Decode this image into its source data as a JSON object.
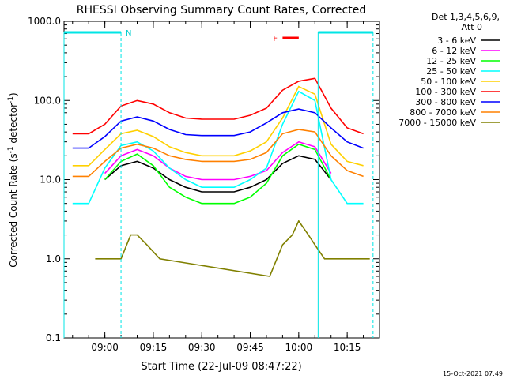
{
  "chart_data": {
    "type": "line",
    "title": "RHESSI Observing Summary Count Rates, Corrected",
    "xlabel": "Start Time (22-Jul-09 08:47:22)",
    "ylabel_main": "Corrected Count Rate (s",
    "ylabel_sup1": "-1",
    "ylabel_mid": " detector",
    "ylabel_sup2": "-1",
    "ylabel_end": ")",
    "y_scale": "log",
    "ylim": [
      0.1,
      1000
    ],
    "xlim": [
      "08:47:22",
      "10:25:00"
    ],
    "x_ticks": [
      "09:00",
      "09:15",
      "09:30",
      "09:45",
      "10:00",
      "10:15"
    ],
    "y_ticks": [
      "0.1",
      "1.0",
      "10.0",
      "100.0",
      "1000.0"
    ],
    "footer_date": "15-Oct-2021 07:49",
    "legend_header": [
      "Det 1,3,4,5,6,9,",
      "Att 0"
    ],
    "annotations": {
      "night_flag": "N",
      "flare_flag": "F",
      "night_intervals": [
        [
          "08:47:22",
          "09:05:00"
        ],
        [
          "10:06:00",
          "10:23:00"
        ]
      ],
      "flare_interval": [
        "09:55:00",
        "10:00:00"
      ]
    },
    "series": [
      {
        "name": "3 - 6 keV",
        "color": "#000000",
        "x": [
          "08:50",
          "08:55",
          "09:00",
          "09:05",
          "09:10",
          "09:15",
          "09:20",
          "09:25",
          "09:30",
          "09:35",
          "09:40",
          "09:45",
          "09:50",
          "09:55",
          "10:00",
          "10:05",
          "10:10",
          "10:15",
          "10:20"
        ],
        "y": [
          null,
          null,
          10,
          15,
          17,
          14,
          10,
          8,
          7,
          7,
          7,
          8,
          10,
          16,
          20,
          18,
          10,
          null,
          null
        ]
      },
      {
        "name": "6 - 12 keV",
        "color": "#ff00ff",
        "x": [
          "08:50",
          "08:55",
          "09:00",
          "09:05",
          "09:10",
          "09:15",
          "09:20",
          "09:25",
          "09:30",
          "09:35",
          "09:40",
          "09:45",
          "09:50",
          "09:55",
          "10:00",
          "10:05",
          "10:10",
          "10:15",
          "10:20"
        ],
        "y": [
          null,
          null,
          12,
          20,
          24,
          20,
          14,
          11,
          10,
          10,
          10,
          11,
          13,
          22,
          30,
          26,
          12,
          null,
          null
        ]
      },
      {
        "name": "12 - 25 keV",
        "color": "#00ff00",
        "x": [
          "08:50",
          "08:55",
          "09:00",
          "09:05",
          "09:10",
          "09:15",
          "09:20",
          "09:25",
          "09:30",
          "09:35",
          "09:40",
          "09:45",
          "09:50",
          "09:55",
          "10:00",
          "10:05",
          "10:10",
          "10:15",
          "10:20"
        ],
        "y": [
          null,
          null,
          10,
          17,
          21,
          15,
          8,
          6,
          5,
          5,
          5,
          6,
          9,
          20,
          28,
          24,
          10,
          null,
          null
        ]
      },
      {
        "name": "25 - 50 keV",
        "color": "#00ffff",
        "x": [
          "08:50",
          "08:55",
          "09:00",
          "09:05",
          "09:10",
          "09:15",
          "09:20",
          "09:25",
          "09:30",
          "09:35",
          "09:40",
          "09:45",
          "09:50",
          "09:55",
          "10:00",
          "10:05",
          "10:10",
          "10:15",
          "10:20"
        ],
        "y": [
          5,
          5,
          14,
          27,
          30,
          23,
          14,
          10,
          8,
          8,
          8,
          10,
          14,
          50,
          130,
          100,
          10,
          5,
          5
        ]
      },
      {
        "name": "50 - 100 keV",
        "color": "#ffd000",
        "x": [
          "08:50",
          "08:55",
          "09:00",
          "09:05",
          "09:10",
          "09:15",
          "09:20",
          "09:25",
          "09:30",
          "09:35",
          "09:40",
          "09:45",
          "09:50",
          "09:55",
          "10:00",
          "10:05",
          "10:10",
          "10:15",
          "10:20"
        ],
        "y": [
          15,
          15,
          24,
          38,
          42,
          35,
          26,
          22,
          20,
          20,
          20,
          23,
          30,
          60,
          150,
          120,
          28,
          17,
          15
        ]
      },
      {
        "name": "100 - 300 keV",
        "color": "#ff0000",
        "x": [
          "08:50",
          "08:55",
          "09:00",
          "09:05",
          "09:10",
          "09:15",
          "09:20",
          "09:25",
          "09:30",
          "09:35",
          "09:40",
          "09:45",
          "09:50",
          "09:55",
          "10:00",
          "10:05",
          "10:10",
          "10:15",
          "10:20"
        ],
        "y": [
          38,
          38,
          50,
          85,
          100,
          90,
          70,
          60,
          58,
          58,
          58,
          65,
          80,
          135,
          175,
          190,
          80,
          45,
          38
        ]
      },
      {
        "name": "300 - 800 keV",
        "color": "#0000ff",
        "x": [
          "08:50",
          "08:55",
          "09:00",
          "09:05",
          "09:10",
          "09:15",
          "09:20",
          "09:25",
          "09:30",
          "09:35",
          "09:40",
          "09:45",
          "09:50",
          "09:55",
          "10:00",
          "10:05",
          "10:10",
          "10:15",
          "10:20"
        ],
        "y": [
          25,
          25,
          35,
          55,
          62,
          55,
          43,
          37,
          36,
          36,
          36,
          40,
          52,
          70,
          78,
          70,
          45,
          30,
          25
        ]
      },
      {
        "name": "800 - 7000 keV",
        "color": "#ff8000",
        "x": [
          "08:50",
          "08:55",
          "09:00",
          "09:05",
          "09:10",
          "09:15",
          "09:20",
          "09:25",
          "09:30",
          "09:35",
          "09:40",
          "09:45",
          "09:50",
          "09:55",
          "10:00",
          "10:05",
          "10:10",
          "10:15",
          "10:20"
        ],
        "y": [
          11,
          11,
          17,
          25,
          28,
          25,
          20,
          18,
          17,
          17,
          17,
          18,
          22,
          38,
          43,
          40,
          20,
          13,
          11
        ]
      },
      {
        "name": "7000 - 15000 keV",
        "color": "#808000",
        "x": [
          "08:57",
          "09:00",
          "09:05",
          "09:08",
          "09:10",
          "09:13",
          "09:17",
          "09:51",
          "09:55",
          "09:58",
          "10:00",
          "10:03",
          "10:05",
          "10:08",
          "10:22"
        ],
        "y": [
          1,
          1,
          1,
          2,
          2,
          1.5,
          1,
          0.6,
          1.5,
          2,
          3,
          2,
          1.5,
          1,
          1
        ]
      }
    ]
  }
}
